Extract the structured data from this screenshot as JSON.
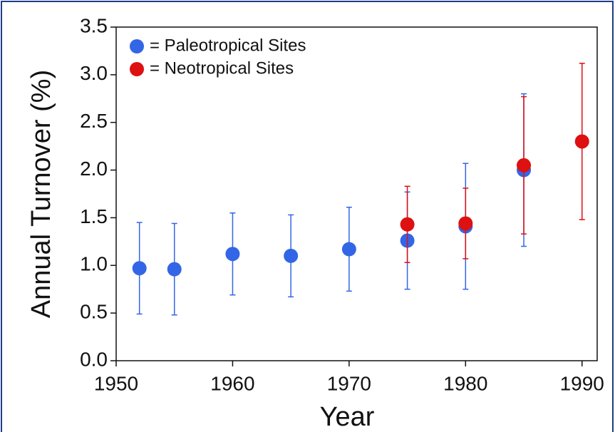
{
  "chart_data": {
    "type": "scatter",
    "xlabel": "Year",
    "ylabel": "Annual Turnover (%)",
    "xlim": [
      1950,
      1991.3
    ],
    "ylim": [
      0,
      3.5
    ],
    "xticks": [
      1950,
      1960,
      1970,
      1980,
      1990
    ],
    "yticks": [
      {
        "value": 0,
        "label": "0.0"
      },
      0.5,
      {
        "value": 1,
        "label": "1.0"
      },
      1.5,
      {
        "value": 2,
        "label": "2.0"
      },
      2.5,
      {
        "value": 3,
        "label": "3.0"
      },
      3.5
    ],
    "legend": "upper left",
    "series": [
      {
        "name": "= Paleotropical Sites",
        "color": "#3366e6",
        "x": [
          1952,
          1955,
          1960,
          1965,
          1970,
          1975,
          1980,
          1985
        ],
        "values": [
          0.97,
          0.96,
          1.12,
          1.1,
          1.17,
          1.26,
          1.41,
          2.0
        ],
        "errors": [
          0.48,
          0.48,
          0.43,
          0.43,
          0.44,
          0.51,
          0.66,
          0.8
        ]
      },
      {
        "name": "= Neotropical Sites",
        "color": "#dd1111",
        "x": [
          1975,
          1980,
          1985,
          1990
        ],
        "values": [
          1.43,
          1.44,
          2.05,
          2.3
        ],
        "errors": [
          0.4,
          0.37,
          0.72,
          0.82
        ]
      }
    ]
  }
}
